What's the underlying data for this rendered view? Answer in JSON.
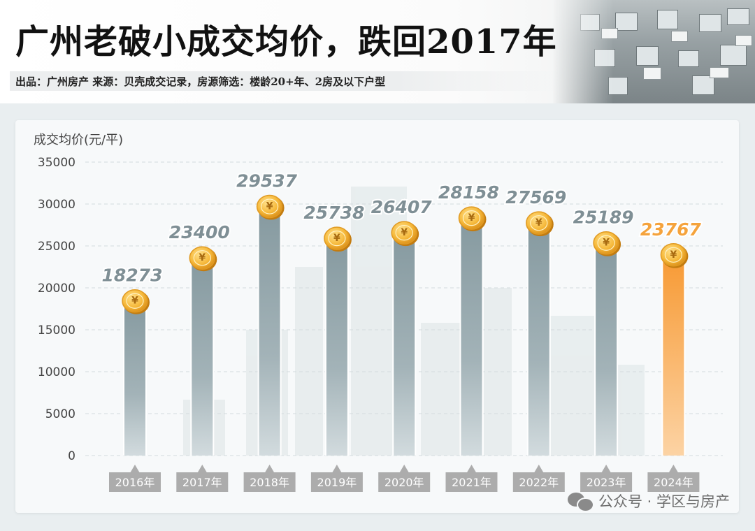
{
  "header": {
    "title": "广州老破小成交均价，跌回2017年",
    "subtitle": "出品：广州房产  来源：贝壳成交记录，房源筛选：楼龄20+年、2房及以下户型"
  },
  "watermark": {
    "icon": "wechat-icon",
    "text": "公众号 · 学区与房产"
  },
  "coin_icon": {
    "symbol": "¥",
    "name": "yuan-coin-icon"
  },
  "colors": {
    "bar": "#90a2a7",
    "highlight_bar": "#f79a34",
    "value_label": "#7f8f95",
    "highlight_label": "#f5a33c",
    "coin": "#f4b83c",
    "axis_label_box": "#acacac"
  },
  "chart_data": {
    "type": "bar",
    "ylabel": "成交均价(元/平)",
    "ylim": [
      0,
      35000
    ],
    "yticks": [
      0,
      5000,
      10000,
      15000,
      20000,
      25000,
      30000,
      35000
    ],
    "grid": true,
    "categories": [
      "2016年",
      "2017年",
      "2018年",
      "2019年",
      "2020年",
      "2021年",
      "2022年",
      "2023年",
      "2024年"
    ],
    "values": [
      18273,
      23400,
      29537,
      25738,
      26407,
      28158,
      27569,
      25189,
      23767
    ],
    "highlight_index": 8
  }
}
